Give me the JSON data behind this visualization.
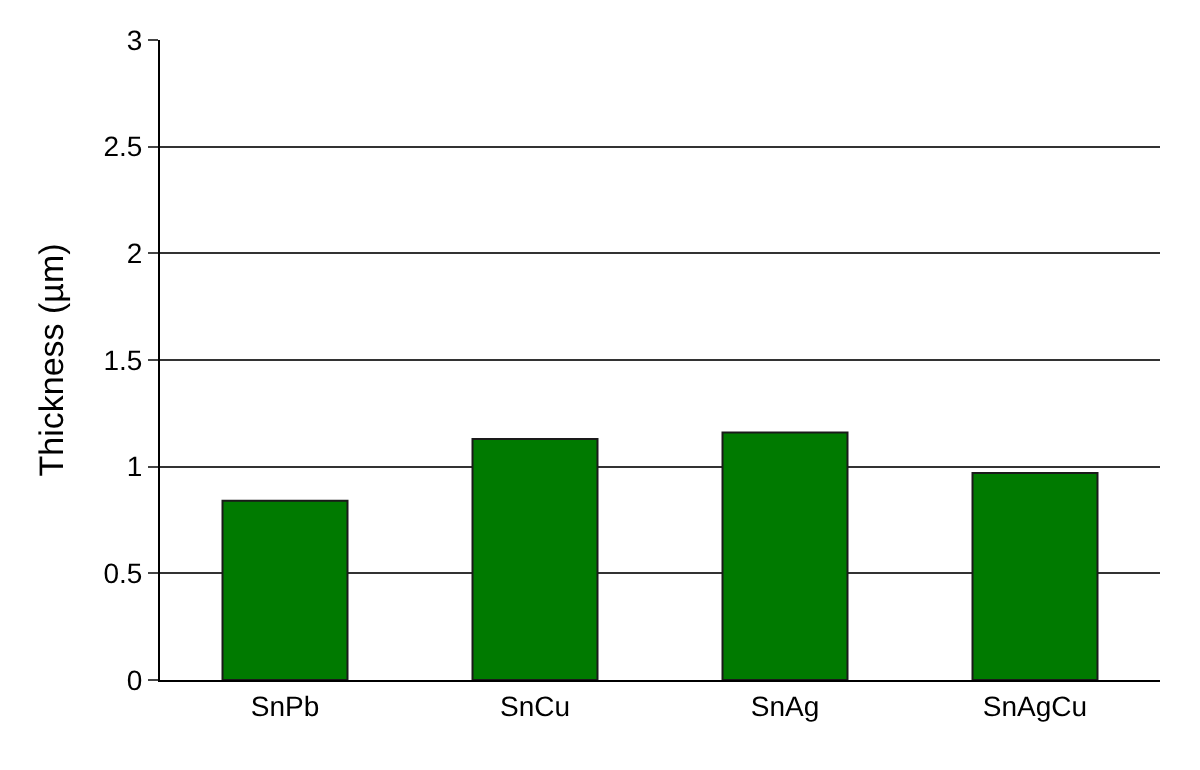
{
  "chart_data": {
    "type": "bar",
    "ylabel": "Thickness (µm)",
    "categories": [
      "SnPb",
      "SnCu",
      "SnAg",
      "SnAgCu"
    ],
    "values": [
      0.84,
      1.13,
      1.16,
      0.97
    ],
    "color": "#007a00",
    "ylim": [
      0,
      3
    ],
    "yticks": [
      0,
      0.5,
      1,
      1.5,
      2,
      2.5,
      3
    ],
    "grid": "y"
  }
}
